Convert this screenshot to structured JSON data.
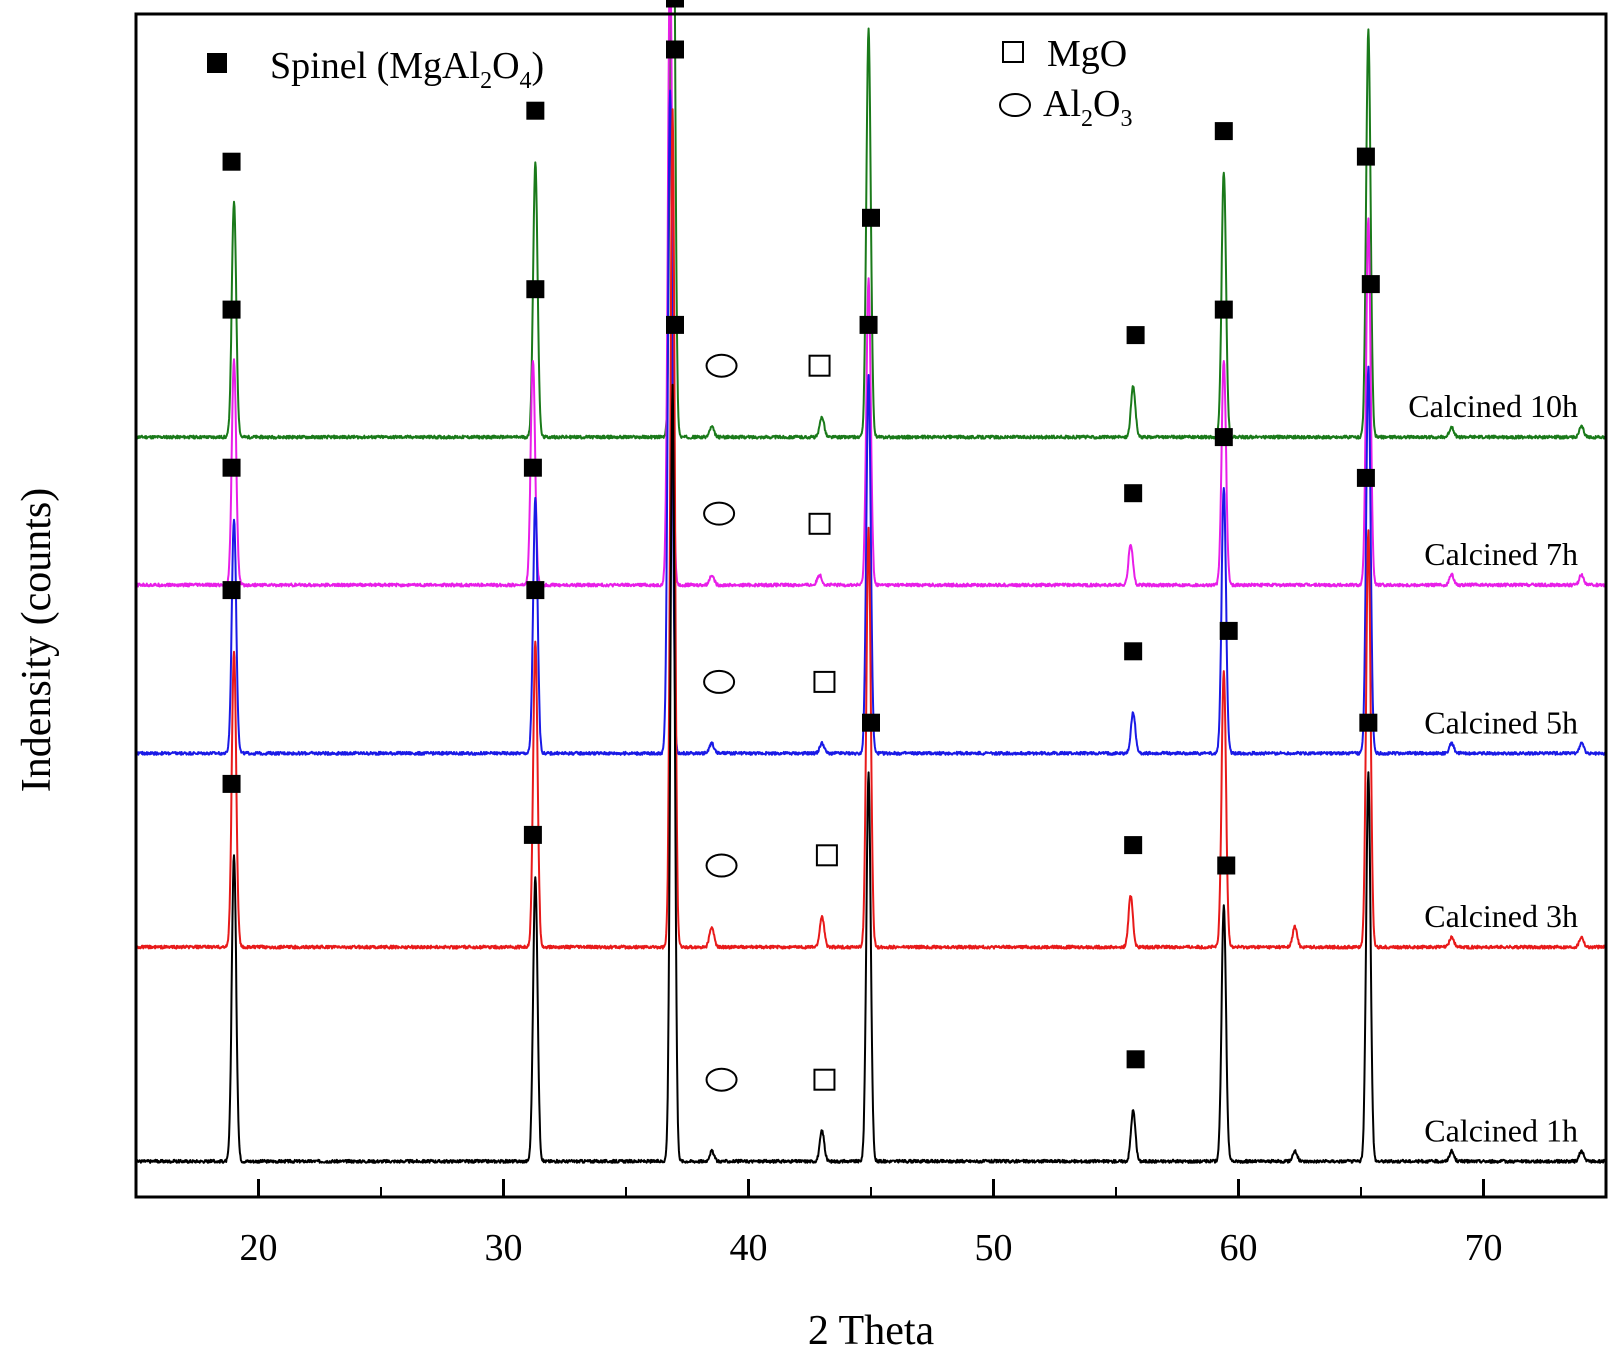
{
  "chart_data": {
    "type": "line",
    "title": "",
    "xlabel": "2 Theta",
    "ylabel": "Indensity (counts)",
    "xlim": [
      15,
      75
    ],
    "x_ticks": [
      20,
      30,
      40,
      50,
      60,
      70
    ],
    "x_tick_labels": [
      "20",
      "30",
      "40",
      "50",
      "60",
      "70"
    ],
    "y_ticks_visible": false,
    "grid": false,
    "legend_position": "top",
    "legend": {
      "spinel": {
        "text": "Spinel (MgAl",
        "sub1": "2",
        "mid": "O",
        "sub2": "4",
        "end": ")",
        "symbol": "filled-square"
      },
      "mgo": {
        "text": "MgO",
        "symbol": "open-square"
      },
      "al2o3": {
        "text": "Al",
        "sub1": "2",
        "mid": "O",
        "sub2": "3",
        "symbol": "open-circle"
      }
    },
    "series": [
      {
        "name": "Calcined 10h",
        "color": "#1a7a1a",
        "baseline": 0.745,
        "peaks": [
          {
            "x": 19.0,
            "h": 0.23
          },
          {
            "x": 31.3,
            "h": 0.27
          },
          {
            "x": 36.9,
            "h": 0.75
          },
          {
            "x": 38.5,
            "h": 0.01
          },
          {
            "x": 43.0,
            "h": 0.02
          },
          {
            "x": 44.9,
            "h": 0.4
          },
          {
            "x": 55.7,
            "h": 0.05
          },
          {
            "x": 59.4,
            "h": 0.26
          },
          {
            "x": 65.3,
            "h": 0.4
          },
          {
            "x": 68.7,
            "h": 0.01
          },
          {
            "x": 74.0,
            "h": 0.01
          }
        ],
        "markers": [
          {
            "type": "filled-square",
            "x": 18.9,
            "level": 0.27
          },
          {
            "type": "filled-square",
            "x": 31.3,
            "level": 0.32
          },
          {
            "type": "filled-square",
            "x": 37.0,
            "level": 0.81
          },
          {
            "type": "open-circle",
            "x": 38.9,
            "level": 0.07
          },
          {
            "type": "open-square",
            "x": 42.9,
            "level": 0.07
          },
          {
            "type": "filled-square",
            "x": 44.9,
            "level": 0.44
          },
          {
            "type": "filled-square",
            "x": 55.8,
            "level": 0.1
          },
          {
            "type": "filled-square",
            "x": 59.4,
            "level": 0.3
          },
          {
            "type": "filled-square",
            "x": 65.4,
            "level": 0.45
          }
        ]
      },
      {
        "name": "Calcined 7h",
        "color": "#e81ee8",
        "baseline": 0.6,
        "peaks": [
          {
            "x": 19.0,
            "h": 0.22
          },
          {
            "x": 31.2,
            "h": 0.22
          },
          {
            "x": 36.8,
            "h": 0.62
          },
          {
            "x": 38.5,
            "h": 0.01
          },
          {
            "x": 42.9,
            "h": 0.01
          },
          {
            "x": 44.9,
            "h": 0.3
          },
          {
            "x": 55.6,
            "h": 0.04
          },
          {
            "x": 59.4,
            "h": 0.22
          },
          {
            "x": 65.3,
            "h": 0.36
          },
          {
            "x": 68.7,
            "h": 0.01
          },
          {
            "x": 74.0,
            "h": 0.01
          }
        ],
        "markers": [
          {
            "type": "filled-square",
            "x": 18.9,
            "level": 0.27
          },
          {
            "type": "filled-square",
            "x": 31.3,
            "level": 0.29
          },
          {
            "type": "filled-square",
            "x": 36.9,
            "level": 0.72
          },
          {
            "type": "open-circle",
            "x": 38.8,
            "level": 0.07
          },
          {
            "type": "open-square",
            "x": 42.9,
            "level": 0.06
          },
          {
            "type": "filled-square",
            "x": 45.0,
            "level": 0.36
          },
          {
            "type": "filled-square",
            "x": 55.7,
            "level": 0.09
          },
          {
            "type": "filled-square",
            "x": 59.4,
            "level": 0.27
          },
          {
            "type": "filled-square",
            "x": 65.2,
            "level": 0.42
          }
        ]
      },
      {
        "name": "Calcined 5h",
        "color": "#1a1ae6",
        "baseline": 0.435,
        "peaks": [
          {
            "x": 19.0,
            "h": 0.23
          },
          {
            "x": 31.3,
            "h": 0.25
          },
          {
            "x": 36.8,
            "h": 0.65
          },
          {
            "x": 38.5,
            "h": 0.01
          },
          {
            "x": 43.0,
            "h": 0.01
          },
          {
            "x": 44.9,
            "h": 0.37
          },
          {
            "x": 55.7,
            "h": 0.04
          },
          {
            "x": 59.4,
            "h": 0.26
          },
          {
            "x": 65.3,
            "h": 0.38
          },
          {
            "x": 68.7,
            "h": 0.01
          },
          {
            "x": 74.0,
            "h": 0.01
          }
        ],
        "markers": [
          {
            "type": "filled-square",
            "x": 18.9,
            "level": 0.28
          },
          {
            "type": "filled-square",
            "x": 31.2,
            "level": 0.28
          },
          {
            "type": "filled-square",
            "x": 37.0,
            "level": 0.74
          },
          {
            "type": "open-circle",
            "x": 38.8,
            "level": 0.07
          },
          {
            "type": "open-square",
            "x": 43.1,
            "level": 0.07
          },
          {
            "type": "filled-square",
            "x": 44.9,
            "level": 0.42
          },
          {
            "type": "filled-square",
            "x": 55.7,
            "level": 0.1
          },
          {
            "type": "filled-square",
            "x": 59.4,
            "level": 0.31
          },
          {
            "type": "filled-square",
            "x": 65.4,
            "level": 0.46
          }
        ]
      },
      {
        "name": "Calcined 3h",
        "color": "#e81a1a",
        "baseline": 0.245,
        "peaks": [
          {
            "x": 19.0,
            "h": 0.29
          },
          {
            "x": 31.3,
            "h": 0.3
          },
          {
            "x": 36.9,
            "h": 0.82
          },
          {
            "x": 38.5,
            "h": 0.02
          },
          {
            "x": 43.0,
            "h": 0.03
          },
          {
            "x": 44.9,
            "h": 0.41
          },
          {
            "x": 55.6,
            "h": 0.05
          },
          {
            "x": 59.4,
            "h": 0.27
          },
          {
            "x": 62.3,
            "h": 0.02
          },
          {
            "x": 65.3,
            "h": 0.41
          },
          {
            "x": 68.7,
            "h": 0.01
          },
          {
            "x": 74.0,
            "h": 0.01
          }
        ],
        "markers": [
          {
            "type": "filled-square",
            "x": 18.9,
            "level": 0.35
          },
          {
            "type": "filled-square",
            "x": 31.3,
            "level": 0.35
          },
          {
            "type": "filled-square",
            "x": 37.0,
            "level": 0.88
          },
          {
            "type": "open-circle",
            "x": 38.9,
            "level": 0.08
          },
          {
            "type": "open-square",
            "x": 43.2,
            "level": 0.09
          },
          {
            "type": "filled-square",
            "x": 55.7,
            "level": 0.1
          },
          {
            "type": "filled-square",
            "x": 59.6,
            "level": 0.31
          },
          {
            "type": "filled-square",
            "x": 65.2,
            "level": 0.46
          }
        ]
      },
      {
        "name": "Calcined 1h",
        "color": "#000000",
        "baseline": 0.035,
        "peaks": [
          {
            "x": 19.0,
            "h": 0.3
          },
          {
            "x": 31.3,
            "h": 0.28
          },
          {
            "x": 36.9,
            "h": 0.76
          },
          {
            "x": 38.5,
            "h": 0.01
          },
          {
            "x": 43.0,
            "h": 0.03
          },
          {
            "x": 44.9,
            "h": 0.38
          },
          {
            "x": 55.7,
            "h": 0.05
          },
          {
            "x": 59.4,
            "h": 0.25
          },
          {
            "x": 62.3,
            "h": 0.01
          },
          {
            "x": 65.3,
            "h": 0.38
          },
          {
            "x": 68.7,
            "h": 0.01
          },
          {
            "x": 74.0,
            "h": 0.01
          }
        ],
        "markers": [
          {
            "type": "filled-square",
            "x": 18.9,
            "level": 0.37
          },
          {
            "type": "filled-square",
            "x": 31.2,
            "level": 0.32
          },
          {
            "type": "filled-square",
            "x": 37.0,
            "level": 0.82
          },
          {
            "type": "open-circle",
            "x": 38.9,
            "level": 0.08
          },
          {
            "type": "open-square",
            "x": 43.1,
            "level": 0.08
          },
          {
            "type": "filled-square",
            "x": 45.0,
            "level": 0.43
          },
          {
            "type": "filled-square",
            "x": 55.8,
            "level": 0.1
          },
          {
            "type": "filled-square",
            "x": 59.5,
            "level": 0.29
          },
          {
            "type": "filled-square",
            "x": 65.3,
            "level": 0.43
          }
        ]
      }
    ]
  }
}
